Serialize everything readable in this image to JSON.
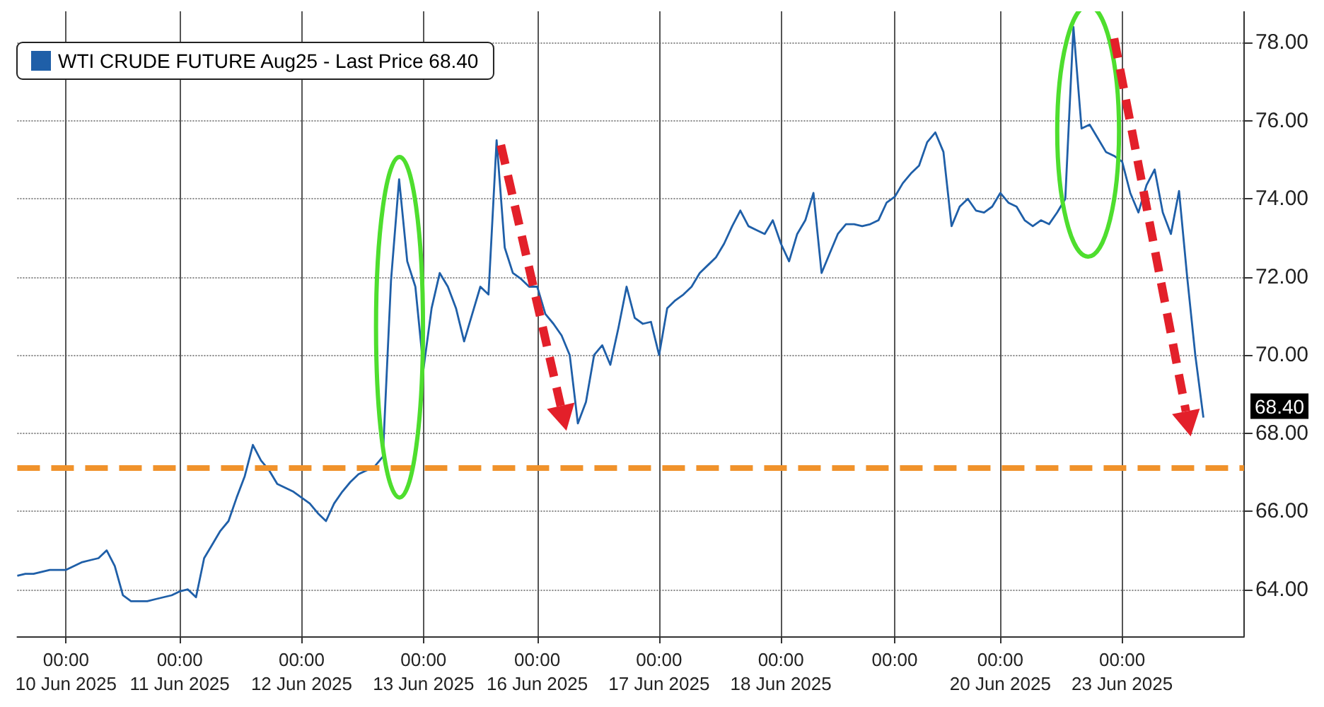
{
  "chart_data": {
    "type": "line",
    "categories": [
      null,
      null,
      null,
      null,
      null,
      null,
      "00:00\n10 Jun 2025",
      null,
      null,
      null,
      null,
      null,
      null,
      null,
      null,
      null,
      null,
      null,
      null,
      null,
      "00:00\n11 Jun 2025",
      null,
      null,
      null,
      null,
      null,
      null,
      null,
      null,
      null,
      null,
      null,
      null,
      null,
      null,
      "00:00\n12 Jun 2025",
      null,
      null,
      null,
      null,
      null,
      null,
      null,
      null,
      null,
      null,
      null,
      null,
      null,
      null,
      "00:00\n13 Jun 2025",
      null,
      null,
      null,
      null,
      null,
      null,
      null,
      null,
      null,
      null,
      null,
      null,
      null,
      "00:00\n16 Jun 2025",
      null,
      null,
      null,
      null,
      null,
      null,
      null,
      null,
      null,
      null,
      null,
      null,
      null,
      null,
      "00:00\n17 Jun 2025",
      null,
      null,
      null,
      null,
      null,
      null,
      null,
      null,
      null,
      null,
      null,
      null,
      null,
      null,
      "00:00\n18 Jun 2025",
      null,
      null,
      null,
      null,
      null,
      null,
      null,
      null,
      null,
      null,
      null,
      null,
      null,
      "00:00",
      null,
      null,
      null,
      null,
      null,
      null,
      null,
      null,
      null,
      null,
      null,
      null,
      "00:00\n20 Jun 2025",
      null,
      null,
      null,
      null,
      null,
      null,
      null,
      null,
      null,
      null,
      null,
      null,
      null,
      null,
      "00:00\n23 Jun 2025",
      null,
      null,
      null,
      null,
      null,
      null,
      null,
      null,
      null,
      null,
      null,
      null,
      null,
      null,
      null
    ],
    "series": [
      {
        "name": "WTI CRUDE FUTURE Aug25 - Last Price 68.40",
        "color": "#1f5fa8",
        "values": [
          64.35,
          64.4,
          64.4,
          64.45,
          64.5,
          64.5,
          64.5,
          64.6,
          64.7,
          64.75,
          64.8,
          65.0,
          64.6,
          63.85,
          63.7,
          63.7,
          63.7,
          63.75,
          63.8,
          63.85,
          63.95,
          64.0,
          63.8,
          64.8,
          65.15,
          65.5,
          65.75,
          66.35,
          66.9,
          67.7,
          67.3,
          67.05,
          66.7,
          66.6,
          66.5,
          66.35,
          66.2,
          65.95,
          65.75,
          66.2,
          66.5,
          66.75,
          66.95,
          67.05,
          67.15,
          67.4,
          71.9,
          74.5,
          72.4,
          71.75,
          69.65,
          71.2,
          72.1,
          71.75,
          71.2,
          70.35,
          71.05,
          71.75,
          71.55,
          75.5,
          72.75,
          72.1,
          71.95,
          71.75,
          71.75,
          71.05,
          70.8,
          70.5,
          70.0,
          68.25,
          68.8,
          70.0,
          70.25,
          69.75,
          70.7,
          71.75,
          70.95,
          70.8,
          70.85,
          70.0,
          71.2,
          71.4,
          71.55,
          71.75,
          72.1,
          72.3,
          72.5,
          72.85,
          73.3,
          73.7,
          73.3,
          73.2,
          73.1,
          73.45,
          72.85,
          72.4,
          73.1,
          73.45,
          74.15,
          72.1,
          72.6,
          73.1,
          73.35,
          73.35,
          73.3,
          73.35,
          73.45,
          73.9,
          74.05,
          74.4,
          74.65,
          74.85,
          75.45,
          75.7,
          75.2,
          73.3,
          73.8,
          74.0,
          73.7,
          73.65,
          73.8,
          74.15,
          73.9,
          73.8,
          73.45,
          73.3,
          73.45,
          73.35,
          73.65,
          74.0,
          78.4,
          75.8,
          75.9,
          75.55,
          75.2,
          75.1,
          74.95,
          74.15,
          73.65,
          74.35,
          74.75,
          73.65,
          73.1,
          74.2,
          72.0,
          70.0,
          68.4,
          null,
          null,
          null,
          null,
          null
        ]
      }
    ],
    "ylim": [
      62.8,
      78.8
    ],
    "yticks": [
      {
        "value": 64,
        "label": "64.00"
      },
      {
        "value": 66,
        "label": "66.00"
      },
      {
        "value": 68,
        "label": "68.00"
      },
      {
        "value": 70,
        "label": "70.00"
      },
      {
        "value": 72,
        "label": "72.00"
      },
      {
        "value": 74,
        "label": "74.00"
      },
      {
        "value": 76,
        "label": "76.00"
      },
      {
        "value": 78,
        "label": "78.00"
      }
    ],
    "ref_lines": [
      {
        "axis": "y",
        "value": 67.1,
        "color": "#f0922b",
        "line_style": "dashed"
      }
    ],
    "annotations": [
      "68.40"
    ],
    "legend": "top left",
    "grid": true,
    "marker": "none",
    "line_style": "solid"
  }
}
